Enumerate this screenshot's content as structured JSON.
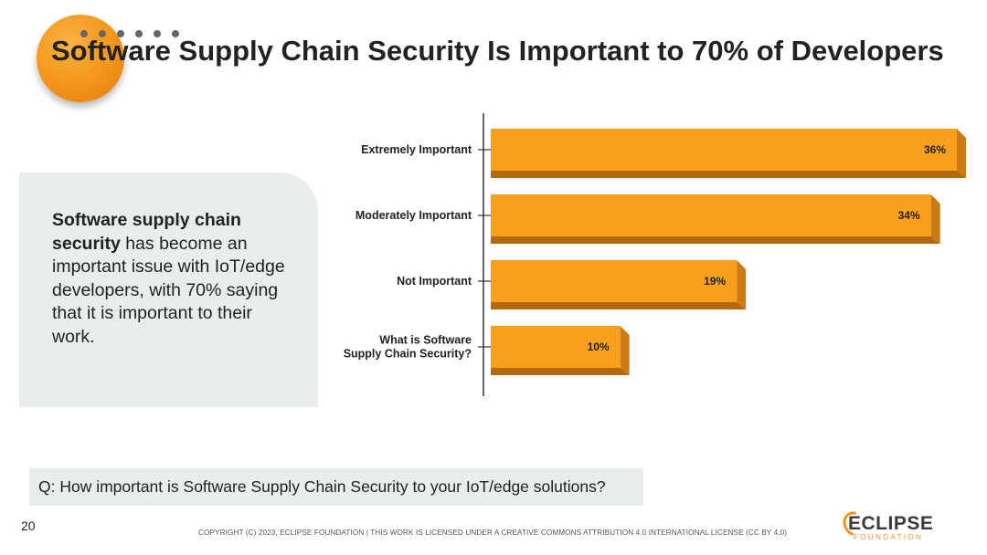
{
  "title": "Software Supply Chain Security Is Important to 70% of Developers",
  "callout": {
    "bold": "Software supply chain security",
    "rest": " has become an important issue with IoT/edge developers, with 70% saying that it is important to their work."
  },
  "question": "Q: How important is Software Supply Chain Security to your IoT/edge solutions?",
  "page_number": "20",
  "copyright": "COPYRIGHT (C) 2023, ECLIPSE FOUNDATION | THIS WORK IS LICENSED UNDER A CREATIVE COMMONS ATTRIBUTION 4.0 INTERNATIONAL LICENSE (CC BY 4.0)",
  "logo": {
    "word": "ECLIPSE",
    "sub": "FOUNDATION"
  },
  "colors": {
    "bar_front": "#f7a01e",
    "bar_bottom": "#b5690d",
    "bar_side": "#cc7a12",
    "accent": "#f7941d"
  },
  "chart_data": {
    "type": "bar",
    "orientation": "horizontal",
    "categories": [
      "Extremely Important",
      "Moderately Important",
      "Not Important",
      "What is Software\nSupply Chain Security?"
    ],
    "values": [
      36,
      34,
      19,
      10
    ],
    "value_labels": [
      "36%",
      "34%",
      "19%",
      "10%"
    ],
    "xlim": [
      0,
      36
    ],
    "title": "",
    "xlabel": "",
    "ylabel": ""
  }
}
